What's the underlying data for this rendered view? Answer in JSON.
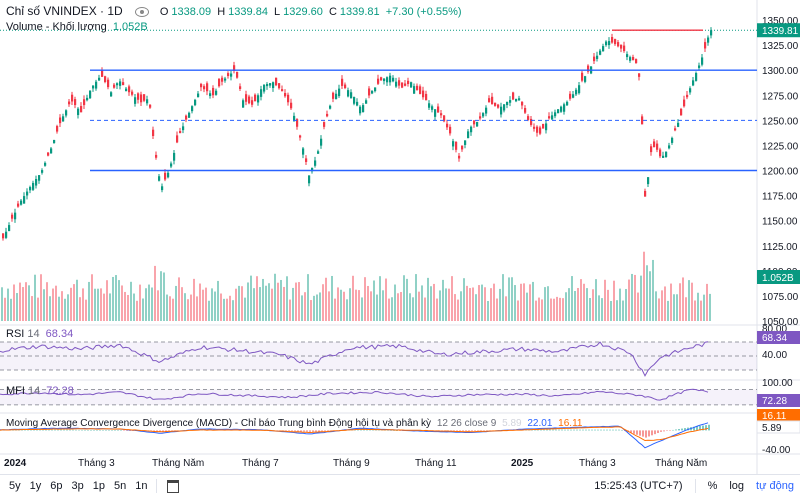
{
  "header": {
    "title": "Chỉ số VNINDEX · 1D",
    "open_label": "O",
    "open": "1338.09",
    "high_label": "H",
    "high": "1339.84",
    "low_label": "L",
    "low": "1329.60",
    "close_label": "C",
    "close": "1339.81",
    "change": "+7.30 (+0.55%)",
    "volume_label": "Volume - Khối lượng",
    "volume_value": "1.052B"
  },
  "rsi": {
    "label": "RSI",
    "period": "14",
    "value": "68.34"
  },
  "mfi": {
    "label": "MFI",
    "period": "14",
    "value": "72.28"
  },
  "macd": {
    "label": "Moving Average Convergence Divergence (MACD) - Chỉ báo Trung bình Động hội tụ và phân kỳ",
    "params": "12 26 close 9",
    "v1": "5.89",
    "v2": "22.01",
    "v3": "16.11"
  },
  "price_axis": [
    "1350.00",
    "1325.00",
    "1300.00",
    "1275.00",
    "1250.00",
    "1225.00",
    "1200.00",
    "1175.00",
    "1150.00",
    "1125.00",
    "1100.00",
    "1075.00",
    "1050.00"
  ],
  "rsi_axis": [
    "80.00",
    "40.00"
  ],
  "mfi_axis": [
    "100.00"
  ],
  "macd_axis": [
    "-40.00"
  ],
  "tags": {
    "last_price": "1339.81",
    "volume": "1.052B",
    "rsi": "68.34",
    "mfi": "72.28",
    "macd": "16.11",
    "signal": "5.89"
  },
  "time_labels": [
    "2024",
    "Tháng 3",
    "Tháng Năm",
    "Tháng 7",
    "Tháng 9",
    "Tháng 11",
    "2025",
    "Tháng 3",
    "Tháng Năm"
  ],
  "bottom_bar": {
    "ranges": [
      "5y",
      "1y",
      "6p",
      "3p",
      "1p",
      "5n",
      "1n"
    ],
    "clock": "15:25:43 (UTC+7)",
    "percent": "%",
    "log": "log",
    "auto": "tự động"
  },
  "colors": {
    "up": "#089981",
    "down": "#f23645",
    "line": "#2962ff",
    "red_line": "#f23645",
    "indicator": "#7e57c2"
  },
  "chart_data": {
    "type": "candlestick",
    "symbol": "VNINDEX",
    "interval": "1D",
    "ylim": [
      1050,
      1350
    ],
    "horizontal_lines": [
      {
        "value": 1300,
        "style": "solid",
        "color": "#2962ff"
      },
      {
        "value": 1250,
        "style": "dashed",
        "color": "#2962ff"
      },
      {
        "value": 1200,
        "style": "solid",
        "color": "#2962ff"
      },
      {
        "value": 1339.8,
        "style": "solid",
        "color": "#f23645"
      }
    ],
    "price_path": [
      [
        0,
        1128
      ],
      [
        10,
        1150
      ],
      [
        20,
        1170
      ],
      [
        30,
        1185
      ],
      [
        40,
        1198
      ],
      [
        50,
        1222
      ],
      [
        60,
        1250
      ],
      [
        70,
        1270
      ],
      [
        80,
        1258
      ],
      [
        90,
        1282
      ],
      [
        100,
        1295
      ],
      [
        110,
        1278
      ],
      [
        118,
        1290
      ],
      [
        128,
        1278
      ],
      [
        140,
        1268
      ],
      [
        148,
        1272
      ],
      [
        153,
        1225
      ],
      [
        160,
        1182
      ],
      [
        168,
        1200
      ],
      [
        178,
        1235
      ],
      [
        190,
        1262
      ],
      [
        200,
        1283
      ],
      [
        212,
        1275
      ],
      [
        222,
        1290
      ],
      [
        234,
        1300
      ],
      [
        242,
        1270
      ],
      [
        252,
        1265
      ],
      [
        262,
        1285
      ],
      [
        272,
        1288
      ],
      [
        282,
        1278
      ],
      [
        292,
        1258
      ],
      [
        302,
        1222
      ],
      [
        308,
        1195
      ],
      [
        316,
        1215
      ],
      [
        322,
        1240
      ],
      [
        330,
        1268
      ],
      [
        340,
        1285
      ],
      [
        350,
        1278
      ],
      [
        360,
        1262
      ],
      [
        370,
        1278
      ],
      [
        380,
        1290
      ],
      [
        390,
        1295
      ],
      [
        400,
        1282
      ],
      [
        410,
        1288
      ],
      [
        420,
        1275
      ],
      [
        430,
        1265
      ],
      [
        440,
        1255
      ],
      [
        450,
        1235
      ],
      [
        458,
        1212
      ],
      [
        468,
        1242
      ],
      [
        478,
        1250
      ],
      [
        488,
        1268
      ],
      [
        498,
        1262
      ],
      [
        508,
        1270
      ],
      [
        518,
        1272
      ],
      [
        528,
        1248
      ],
      [
        538,
        1235
      ],
      [
        548,
        1252
      ],
      [
        558,
        1262
      ],
      [
        568,
        1270
      ],
      [
        578,
        1285
      ],
      [
        588,
        1300
      ],
      [
        598,
        1318
      ],
      [
        606,
        1330
      ],
      [
        614,
        1326
      ],
      [
        622,
        1320
      ],
      [
        630,
        1312
      ],
      [
        637,
        1305
      ],
      [
        640,
        1270
      ],
      [
        645,
        1150
      ],
      [
        648,
        1215
      ],
      [
        654,
        1225
      ],
      [
        660,
        1212
      ],
      [
        666,
        1220
      ],
      [
        672,
        1235
      ],
      [
        680,
        1255
      ],
      [
        690,
        1285
      ],
      [
        697,
        1302
      ],
      [
        703,
        1318
      ],
      [
        709,
        1339.8
      ]
    ],
    "rsi_ylim": [
      20,
      90
    ],
    "rsi_path": [
      [
        0,
        58
      ],
      [
        40,
        64
      ],
      [
        80,
        60
      ],
      [
        120,
        66
      ],
      [
        160,
        42
      ],
      [
        200,
        63
      ],
      [
        240,
        58
      ],
      [
        280,
        52
      ],
      [
        310,
        38
      ],
      [
        350,
        62
      ],
      [
        400,
        64
      ],
      [
        440,
        52
      ],
      [
        470,
        55
      ],
      [
        520,
        60
      ],
      [
        560,
        56
      ],
      [
        600,
        68
      ],
      [
        630,
        55
      ],
      [
        645,
        24
      ],
      [
        660,
        48
      ],
      [
        690,
        62
      ],
      [
        709,
        68.34
      ]
    ],
    "mfi_ylim": [
      0,
      110
    ],
    "mfi_path": [
      [
        0,
        62
      ],
      [
        40,
        68
      ],
      [
        80,
        60
      ],
      [
        120,
        70
      ],
      [
        160,
        40
      ],
      [
        200,
        65
      ],
      [
        240,
        58
      ],
      [
        290,
        50
      ],
      [
        330,
        65
      ],
      [
        380,
        70
      ],
      [
        430,
        52
      ],
      [
        470,
        60
      ],
      [
        520,
        62
      ],
      [
        560,
        55
      ],
      [
        600,
        72
      ],
      [
        640,
        58
      ],
      [
        660,
        40
      ],
      [
        690,
        80
      ],
      [
        709,
        72.28
      ]
    ],
    "macd_ylim": [
      -60,
      40
    ],
    "macd_path": [
      [
        0,
        2
      ],
      [
        60,
        6
      ],
      [
        120,
        4
      ],
      [
        160,
        -8
      ],
      [
        200,
        4
      ],
      [
        260,
        2
      ],
      [
        310,
        -10
      ],
      [
        360,
        6
      ],
      [
        420,
        -2
      ],
      [
        470,
        -6
      ],
      [
        520,
        3
      ],
      [
        580,
        9
      ],
      [
        620,
        12
      ],
      [
        645,
        -48
      ],
      [
        660,
        -30
      ],
      [
        690,
        5
      ],
      [
        709,
        22
      ]
    ],
    "signal_path": [
      [
        0,
        1
      ],
      [
        60,
        4
      ],
      [
        120,
        4
      ],
      [
        160,
        -4
      ],
      [
        200,
        1
      ],
      [
        260,
        1
      ],
      [
        310,
        -6
      ],
      [
        360,
        3
      ],
      [
        420,
        0
      ],
      [
        470,
        -4
      ],
      [
        520,
        1
      ],
      [
        580,
        7
      ],
      [
        620,
        10
      ],
      [
        645,
        -28
      ],
      [
        660,
        -26
      ],
      [
        690,
        -4
      ],
      [
        709,
        5.89
      ]
    ]
  }
}
